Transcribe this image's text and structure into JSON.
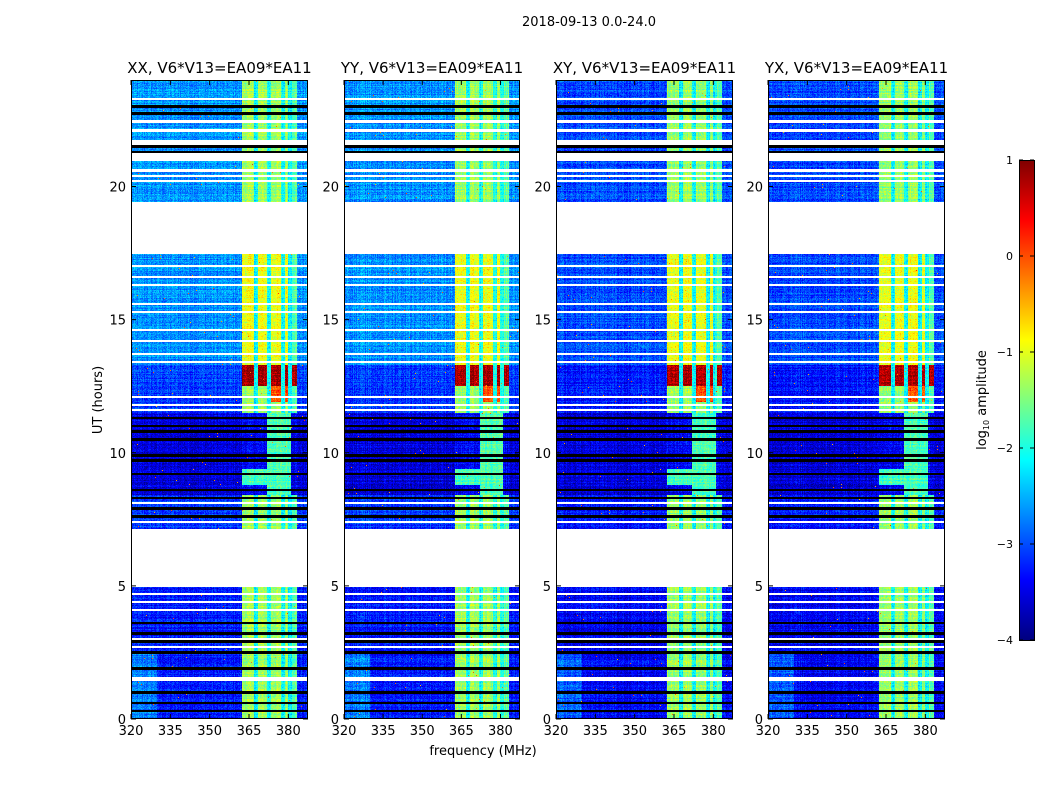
{
  "chart_data": {
    "type": "heatmap",
    "title": "2018-09-13 0.0-24.0",
    "xlabel": "frequency (MHz)",
    "ylabel": "UT (hours)",
    "xlim": [
      320,
      387.5
    ],
    "ylim": [
      0,
      24
    ],
    "xticks": [
      320,
      335,
      350,
      365,
      380
    ],
    "yticks": [
      0,
      5,
      10,
      15,
      20
    ],
    "panels": [
      {
        "title": "XX, V6*V13=EA09*EA11",
        "base_offset": 0.35
      },
      {
        "title": "YY, V6*V13=EA09*EA11",
        "base_offset": 0.35
      },
      {
        "title": "XY, V6*V13=EA09*EA11",
        "base_offset": 0.0
      },
      {
        "title": "YX, V6*V13=EA09*EA11",
        "base_offset": 0.0
      }
    ],
    "colorbar": {
      "label": "log10 amplitude",
      "label_main": "log",
      "label_sub": "10",
      "label_rest": " amplitude",
      "range": [
        -4,
        1
      ],
      "ticks": [
        -4,
        -3,
        -2,
        -1,
        0,
        1
      ],
      "tick_labels": [
        "−4",
        "−3",
        "−2",
        "−1",
        "0",
        "1"
      ],
      "colormap": "jet"
    },
    "features": {
      "flagged_time_ranges_hours": [
        [
          4.94,
          7.15
        ],
        [
          17.45,
          19.4
        ],
        [
          20.95,
          21.25
        ],
        [
          21.55,
          21.75
        ],
        [
          22.05,
          22.15
        ],
        [
          22.4,
          22.5
        ]
      ],
      "black_time_lines_hours": [
        21.3,
        21.5,
        22.75,
        23.0,
        11.3,
        11.0,
        10.8,
        10.5,
        9.9,
        9.7,
        9.2,
        8.6,
        8.3,
        7.9,
        7.6,
        3.6,
        3.2,
        2.9,
        2.5,
        1.9,
        1.0,
        0.6,
        0.3
      ],
      "white_time_lines_hours": [
        23.3,
        20.6,
        20.4,
        20.2,
        17.0,
        16.6,
        16.3,
        15.6,
        15.3,
        14.6,
        14.2,
        13.7,
        13.4,
        12.1,
        11.8,
        11.6,
        8.1,
        7.4,
        4.7,
        4.4,
        4.1,
        3.0,
        2.7,
        1.55,
        1.45
      ],
      "bright_band_mhz": [
        362.5,
        383.3
      ],
      "band_gap_channels_mhz": [
        367.6,
        372.6,
        378.0,
        380.7
      ],
      "strong_rfi_hours": [
        12.5,
        13.3
      ]
    }
  }
}
